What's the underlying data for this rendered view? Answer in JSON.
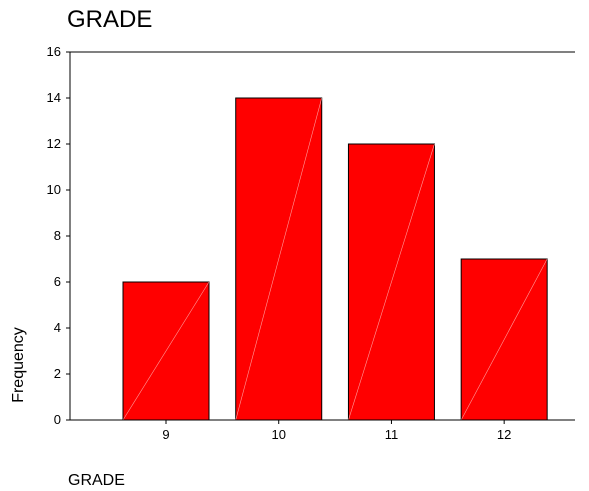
{
  "chart_data": {
    "type": "bar",
    "title": "GRADE",
    "xlabel": "GRADE",
    "ylabel": "Frequency",
    "categories": [
      "9",
      "10",
      "11",
      "12"
    ],
    "values": [
      6,
      14,
      12,
      7
    ],
    "ylim": [
      0,
      16
    ],
    "yticks": [
      0,
      2,
      4,
      6,
      8,
      10,
      12,
      14,
      16
    ],
    "bar_color": "#ff0000",
    "grid": false,
    "legend": "none"
  }
}
